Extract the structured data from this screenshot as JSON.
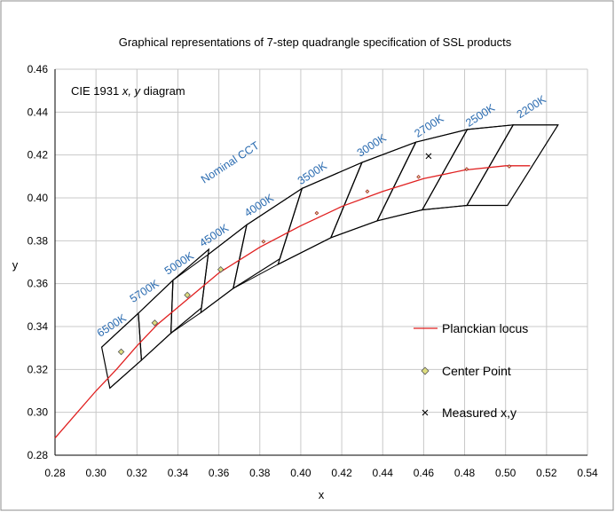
{
  "chart_data": {
    "type": "line",
    "title": "Graphical  representations of 7-step quadrangle specification of SSL products",
    "subtitle_prefix": "CIE 1931 ",
    "subtitle_italic": "x, y",
    "subtitle_suffix": " diagram",
    "xlabel": "x",
    "ylabel": "y",
    "xlim": [
      0.28,
      0.54
    ],
    "ylim": [
      0.28,
      0.46
    ],
    "xticks": [
      "0.28",
      "0.30",
      "0.32",
      "0.34",
      "0.36",
      "0.38",
      "0.40",
      "0.42",
      "0.44",
      "0.46",
      "0.48",
      "0.50",
      "0.52",
      "0.54"
    ],
    "yticks": [
      "0.28",
      "0.30",
      "0.32",
      "0.34",
      "0.36",
      "0.38",
      "0.40",
      "0.42",
      "0.44",
      "0.46"
    ],
    "grid": true,
    "legend_placement": "bottom-right",
    "colors": {
      "planckian": "#e02020",
      "outline": "#000000",
      "center_fill": "#dede80",
      "cct_text": "#2a6bb0"
    },
    "nominal_cct_label": "Nominal CCT",
    "series": [
      {
        "name": "Planckian locus",
        "kind": "line",
        "x": [
          0.28,
          0.29,
          0.3,
          0.31,
          0.32,
          0.33,
          0.345,
          0.36,
          0.38,
          0.4,
          0.42,
          0.44,
          0.46,
          0.48,
          0.5,
          0.512
        ],
        "y": [
          0.288,
          0.299,
          0.31,
          0.32,
          0.331,
          0.341,
          0.353,
          0.365,
          0.377,
          0.387,
          0.396,
          0.403,
          0.409,
          0.413,
          0.415,
          0.415
        ]
      },
      {
        "name": "Center Point",
        "kind": "points",
        "marker": "diamond",
        "x": [
          0.3123,
          0.3287,
          0.3446,
          0.3609,
          0.3818,
          0.4078,
          0.4325,
          0.4575,
          0.481,
          0.5018
        ],
        "y": [
          0.3282,
          0.3417,
          0.3547,
          0.3666,
          0.3796,
          0.3929,
          0.403,
          0.4098,
          0.4134,
          0.4147
        ]
      },
      {
        "name": "Measured x,y",
        "kind": "points",
        "marker": "x",
        "x": [
          0.4624
        ],
        "y": [
          0.4195
        ]
      }
    ],
    "quadrangles": [
      {
        "cct": "6500K",
        "vertices": [
          [
            0.3028,
            0.3304
          ],
          [
            0.3207,
            0.3462
          ],
          [
            0.3222,
            0.3243
          ],
          [
            0.3068,
            0.3113
          ]
        ]
      },
      {
        "cct": "5700K",
        "vertices": [
          [
            0.3207,
            0.3462
          ],
          [
            0.3376,
            0.3616
          ],
          [
            0.3366,
            0.3369
          ],
          [
            0.3222,
            0.3243
          ]
        ]
      },
      {
        "cct": "5000K",
        "vertices": [
          [
            0.3376,
            0.3616
          ],
          [
            0.3551,
            0.376
          ],
          [
            0.3515,
            0.3487
          ],
          [
            0.3366,
            0.3369
          ]
        ]
      },
      {
        "cct": "4500K",
        "vertices": [
          [
            0.3548,
            0.3736
          ],
          [
            0.3736,
            0.3874
          ],
          [
            0.367,
            0.3578
          ],
          [
            0.3512,
            0.3465
          ]
        ]
      },
      {
        "cct": "4000K",
        "vertices": [
          [
            0.3736,
            0.3874
          ],
          [
            0.4006,
            0.4044
          ],
          [
            0.3898,
            0.3716
          ],
          [
            0.367,
            0.3578
          ]
        ]
      },
      {
        "cct": "3500K",
        "vertices": [
          [
            0.4006,
            0.4044
          ],
          [
            0.4299,
            0.4165
          ],
          [
            0.4147,
            0.3814
          ],
          [
            0.3889,
            0.369
          ]
        ]
      },
      {
        "cct": "3000K",
        "vertices": [
          [
            0.4299,
            0.4165
          ],
          [
            0.4562,
            0.426
          ],
          [
            0.4373,
            0.3893
          ],
          [
            0.4147,
            0.3814
          ]
        ]
      },
      {
        "cct": "2700K",
        "vertices": [
          [
            0.4562,
            0.426
          ],
          [
            0.4813,
            0.4319
          ],
          [
            0.4593,
            0.3944
          ],
          [
            0.4373,
            0.3893
          ]
        ]
      },
      {
        "cct": "2500K",
        "vertices": [
          [
            0.4813,
            0.4319
          ],
          [
            0.5037,
            0.434
          ],
          [
            0.4811,
            0.3965
          ],
          [
            0.4593,
            0.3944
          ]
        ]
      },
      {
        "cct": "2200K",
        "vertices": [
          [
            0.5037,
            0.434
          ],
          [
            0.5256,
            0.434
          ],
          [
            0.5009,
            0.3965
          ],
          [
            0.4811,
            0.3965
          ]
        ]
      }
    ],
    "cct_labels": [
      {
        "text": "6500K",
        "x": 0.302,
        "y": 0.335
      },
      {
        "text": "5700K",
        "x": 0.318,
        "y": 0.351
      },
      {
        "text": "5000K",
        "x": 0.335,
        "y": 0.364
      },
      {
        "text": "4500K",
        "x": 0.352,
        "y": 0.377
      },
      {
        "text": "4000K",
        "x": 0.374,
        "y": 0.391
      },
      {
        "text": "3500K",
        "x": 0.4,
        "y": 0.406
      },
      {
        "text": "3000K",
        "x": 0.429,
        "y": 0.419
      },
      {
        "text": "2700K",
        "x": 0.457,
        "y": 0.428
      },
      {
        "text": "2500K",
        "x": 0.482,
        "y": 0.433
      },
      {
        "text": "2200K",
        "x": 0.507,
        "y": 0.437
      }
    ]
  }
}
